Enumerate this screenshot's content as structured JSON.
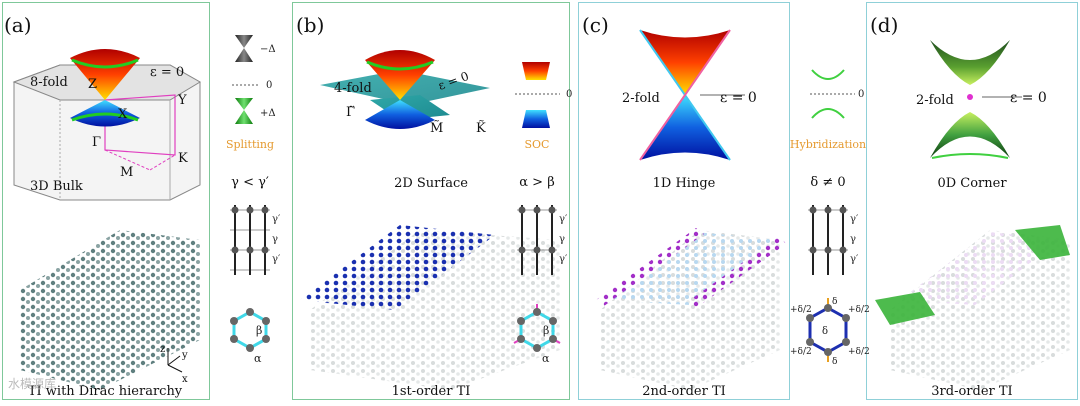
{
  "panels": [
    {
      "label": "(a)",
      "fold": "8-fold",
      "points": [
        "Z",
        "X",
        "Y",
        "Γ",
        "M",
        "K"
      ],
      "eps": "ε = 0",
      "region": "3D Bulk",
      "caption": "TI with Dirac hierarchy"
    },
    {
      "label": "(b)",
      "fold": "4-fold",
      "points": [
        "Γ̃",
        "M̃",
        "K̃"
      ],
      "eps": "ε = 0",
      "region": "2D Surface",
      "caption": "1st-order TI"
    },
    {
      "label": "(c)",
      "fold": "2-fold",
      "eps": "ε = 0",
      "region": "1D Hinge",
      "caption": "2nd-order TI"
    },
    {
      "label": "(d)",
      "fold": "2-fold",
      "eps": "ε = 0",
      "region": "0D Corner",
      "caption": "3rd-order TI"
    }
  ],
  "between": [
    {
      "top": "−Δ",
      "zero": "0",
      "bottom": "+Δ",
      "word": "Splitting",
      "relation": "γ < γ′",
      "gamma": [
        "γ′",
        "γ",
        "γ′"
      ],
      "hex": [
        "β",
        "α"
      ]
    },
    {
      "zero": "0",
      "word": "SOC",
      "relation": "α > β",
      "gamma": [
        "γ′",
        "γ",
        "γ′"
      ],
      "hex": [
        "β",
        "α"
      ]
    },
    {
      "zero": "0",
      "word": "Hybridization",
      "relation": "δ ≠ 0",
      "gamma": [
        "γ′",
        "γ",
        "γ′"
      ],
      "hex": [
        "+δ/2",
        "δ",
        "+δ/2",
        "+δ/2",
        "δ",
        "+δ/2",
        "δ"
      ]
    }
  ],
  "axes": {
    "z": "z",
    "y": "y",
    "x": "x"
  },
  "watermark": "水模源库"
}
